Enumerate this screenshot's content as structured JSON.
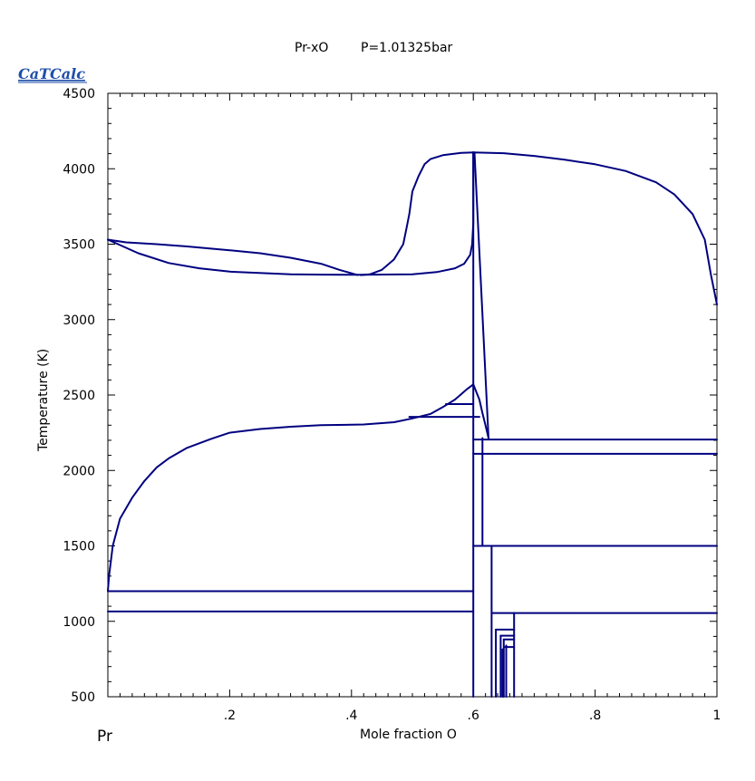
{
  "header": {
    "system": "Pr-xO",
    "pressure": "P=1.01325bar"
  },
  "logo": {
    "text": "CaTCalc"
  },
  "chart_data": {
    "type": "line",
    "title": "Pr-xO     P=1.01325bar",
    "xlabel": "Mole fraction O",
    "ylabel": "Temperature (K)",
    "xlim": [
      0,
      1
    ],
    "ylim": [
      500,
      4500
    ],
    "x_left_label": "Pr",
    "x_ticks": [
      {
        "value": 0.2,
        "label": ".2"
      },
      {
        "value": 0.4,
        "label": ".4"
      },
      {
        "value": 0.6,
        "label": ".6"
      },
      {
        "value": 0.8,
        "label": ".8"
      },
      {
        "value": 1.0,
        "label": "1"
      }
    ],
    "y_ticks": [
      {
        "value": 500,
        "label": "500"
      },
      {
        "value": 1000,
        "label": "1000"
      },
      {
        "value": 1500,
        "label": "1500"
      },
      {
        "value": 2000,
        "label": "2000"
      },
      {
        "value": 2500,
        "label": "2500"
      },
      {
        "value": 3000,
        "label": "3000"
      },
      {
        "value": 3500,
        "label": "3500"
      },
      {
        "value": 4000,
        "label": "4000"
      },
      {
        "value": 4500,
        "label": "4500"
      }
    ],
    "grid": false,
    "series": [
      {
        "points": [
          [
            0.0,
            3530
          ],
          [
            0.03,
            3512
          ],
          [
            0.08,
            3500
          ],
          [
            0.13,
            3485
          ],
          [
            0.2,
            3460
          ],
          [
            0.25,
            3440
          ],
          [
            0.3,
            3410
          ],
          [
            0.35,
            3370
          ],
          [
            0.38,
            3330
          ],
          [
            0.41,
            3295
          ]
        ]
      },
      {
        "points": [
          [
            0.0,
            3530
          ],
          [
            0.05,
            3440
          ],
          [
            0.1,
            3375
          ],
          [
            0.15,
            3340
          ],
          [
            0.2,
            3318
          ],
          [
            0.3,
            3300
          ],
          [
            0.35,
            3298
          ],
          [
            0.42,
            3297
          ],
          [
            0.5,
            3300
          ],
          [
            0.54,
            3315
          ],
          [
            0.57,
            3340
          ],
          [
            0.585,
            3370
          ],
          [
            0.595,
            3430
          ],
          [
            0.598,
            3500
          ],
          [
            0.6,
            3640
          ],
          [
            0.6,
            4110
          ]
        ]
      },
      {
        "points": [
          [
            0.415,
            3295
          ],
          [
            0.43,
            3300
          ],
          [
            0.45,
            3330
          ],
          [
            0.47,
            3400
          ],
          [
            0.485,
            3500
          ],
          [
            0.49,
            3600
          ],
          [
            0.495,
            3700
          ],
          [
            0.5,
            3850
          ],
          [
            0.51,
            3950
          ],
          [
            0.52,
            4030
          ],
          [
            0.53,
            4065
          ],
          [
            0.55,
            4090
          ],
          [
            0.58,
            4105
          ],
          [
            0.6,
            4108
          ],
          [
            0.65,
            4103
          ],
          [
            0.7,
            4085
          ],
          [
            0.75,
            4060
          ],
          [
            0.8,
            4030
          ],
          [
            0.85,
            3985
          ],
          [
            0.9,
            3910
          ],
          [
            0.93,
            3830
          ],
          [
            0.96,
            3700
          ],
          [
            0.98,
            3530
          ],
          [
            0.99,
            3300
          ],
          [
            1.0,
            3100
          ]
        ]
      },
      {
        "points": [
          [
            0.0,
            1200
          ],
          [
            0.002,
            1300
          ],
          [
            0.008,
            1500
          ],
          [
            0.02,
            1680
          ],
          [
            0.04,
            1820
          ],
          [
            0.06,
            1930
          ],
          [
            0.08,
            2020
          ],
          [
            0.1,
            2080
          ],
          [
            0.13,
            2150
          ],
          [
            0.17,
            2210
          ],
          [
            0.2,
            2250
          ],
          [
            0.25,
            2275
          ],
          [
            0.3,
            2290
          ],
          [
            0.35,
            2300
          ],
          [
            0.42,
            2305
          ],
          [
            0.47,
            2320
          ],
          [
            0.5,
            2345
          ],
          [
            0.53,
            2375
          ],
          [
            0.55,
            2420
          ],
          [
            0.57,
            2470
          ],
          [
            0.59,
            2540
          ],
          [
            0.6,
            2570
          ]
        ]
      },
      {
        "points": [
          [
            0.6,
            2570
          ],
          [
            0.61,
            2470
          ],
          [
            0.615,
            2380
          ],
          [
            0.62,
            2300
          ],
          [
            0.625,
            2215
          ]
        ]
      },
      {
        "points": [
          [
            0.602,
            4108
          ],
          [
            0.625,
            2215
          ]
        ]
      },
      {
        "points": [
          [
            0.6,
            4108
          ],
          [
            0.6,
            500
          ]
        ]
      },
      {
        "points": [
          [
            0.555,
            2440
          ],
          [
            0.6,
            2440
          ]
        ]
      },
      {
        "points": [
          [
            0.495,
            2355
          ],
          [
            0.61,
            2355
          ]
        ]
      },
      {
        "points": [
          [
            0.6,
            2205
          ],
          [
            1.0,
            2205
          ]
        ]
      },
      {
        "points": [
          [
            0.6,
            2110
          ],
          [
            1.0,
            2110
          ]
        ]
      },
      {
        "points": [
          [
            0.615,
            2215
          ],
          [
            0.615,
            1500
          ]
        ]
      },
      {
        "points": [
          [
            0.6,
            1500
          ],
          [
            1.0,
            1500
          ]
        ]
      },
      {
        "points": [
          [
            0.0,
            1200
          ],
          [
            0.6,
            1200
          ]
        ]
      },
      {
        "points": [
          [
            0.0,
            1065
          ],
          [
            0.6,
            1065
          ]
        ]
      },
      {
        "points": [
          [
            0.63,
            1500
          ],
          [
            0.63,
            500
          ]
        ]
      },
      {
        "points": [
          [
            0.63,
            1055
          ],
          [
            1.0,
            1055
          ]
        ]
      },
      {
        "points": [
          [
            0.667,
            1055
          ],
          [
            0.667,
            500
          ]
        ]
      },
      {
        "points": [
          [
            0.637,
            945
          ],
          [
            0.667,
            945
          ]
        ]
      },
      {
        "points": [
          [
            0.637,
            945
          ],
          [
            0.637,
            500
          ]
        ]
      },
      {
        "points": [
          [
            0.645,
            905
          ],
          [
            0.667,
            905
          ]
        ]
      },
      {
        "points": [
          [
            0.645,
            905
          ],
          [
            0.645,
            500
          ]
        ]
      },
      {
        "points": [
          [
            0.65,
            880
          ],
          [
            0.667,
            880
          ]
        ]
      },
      {
        "points": [
          [
            0.65,
            880
          ],
          [
            0.65,
            500
          ]
        ]
      },
      {
        "points": [
          [
            0.652,
            830
          ],
          [
            0.667,
            830
          ]
        ]
      },
      {
        "points": [
          [
            0.648,
            815
          ],
          [
            0.648,
            500
          ]
        ]
      },
      {
        "points": [
          [
            0.654,
            840
          ],
          [
            0.654,
            500
          ]
        ]
      }
    ]
  }
}
